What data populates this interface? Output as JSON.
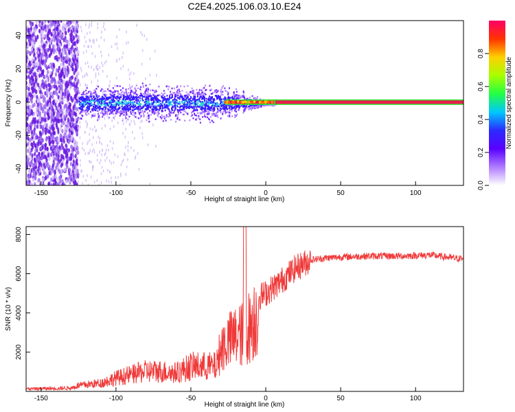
{
  "title": "C2E4.2025.106.03.10.E24",
  "colors": {
    "snr_line": "#f03a3a",
    "colorbar_stops": [
      "#ffffff",
      "#b07cff",
      "#5a00ff",
      "#2b2bff",
      "#00c8ff",
      "#22ff44",
      "#a8ff00",
      "#ffd000",
      "#ff3300",
      "#ff0066"
    ],
    "carrier_band": "#e6204b",
    "carrier_edge": "#2fe62f"
  },
  "chart_data": [
    {
      "type": "heatmap",
      "name": "spectrogram",
      "xlabel": "Height of straight line (km)",
      "ylabel": "Frequency (Hz)",
      "xlim": [
        -160,
        132
      ],
      "ylim": [
        -50,
        49
      ],
      "xticks": [
        -150,
        -100,
        -50,
        0,
        50,
        100
      ],
      "yticks": [
        -40,
        -20,
        0,
        20,
        40
      ],
      "carrier_frequency": 0,
      "carrier_visible_from_km": -27,
      "colorbar": {
        "label": "Normalized spectral amplitude",
        "range": [
          0,
          1
        ],
        "ticks": [
          "0.0",
          "0.2",
          "0.4",
          "0.6",
          "0.8"
        ]
      },
      "grid": false
    },
    {
      "type": "line",
      "name": "snr",
      "xlabel": "Height of straight line (km)",
      "ylabel": "SNR (10 * v/v)",
      "xlim": [
        -160,
        132
      ],
      "ylim": [
        0,
        8400
      ],
      "xticks": [
        -150,
        -100,
        -50,
        0,
        50,
        100
      ],
      "yticks": [
        2000,
        4000,
        6000,
        8000
      ],
      "envelope": {
        "x": [
          -160,
          -130,
          -125,
          -110,
          -100,
          -90,
          -80,
          -70,
          -60,
          -50,
          -40,
          -33,
          -30,
          -25,
          -20,
          -15,
          -10,
          -5,
          0,
          5,
          10,
          20,
          30,
          40,
          50,
          70,
          90,
          110,
          125,
          132
        ],
        "y": [
          150,
          200,
          350,
          500,
          800,
          1000,
          1200,
          1200,
          1100,
          1500,
          1500,
          1500,
          2600,
          3000,
          3300,
          3400,
          4000,
          4800,
          5000,
          5300,
          5600,
          6300,
          6700,
          6800,
          6850,
          6900,
          6900,
          6950,
          6800,
          6750
        ]
      },
      "grid": false
    }
  ]
}
